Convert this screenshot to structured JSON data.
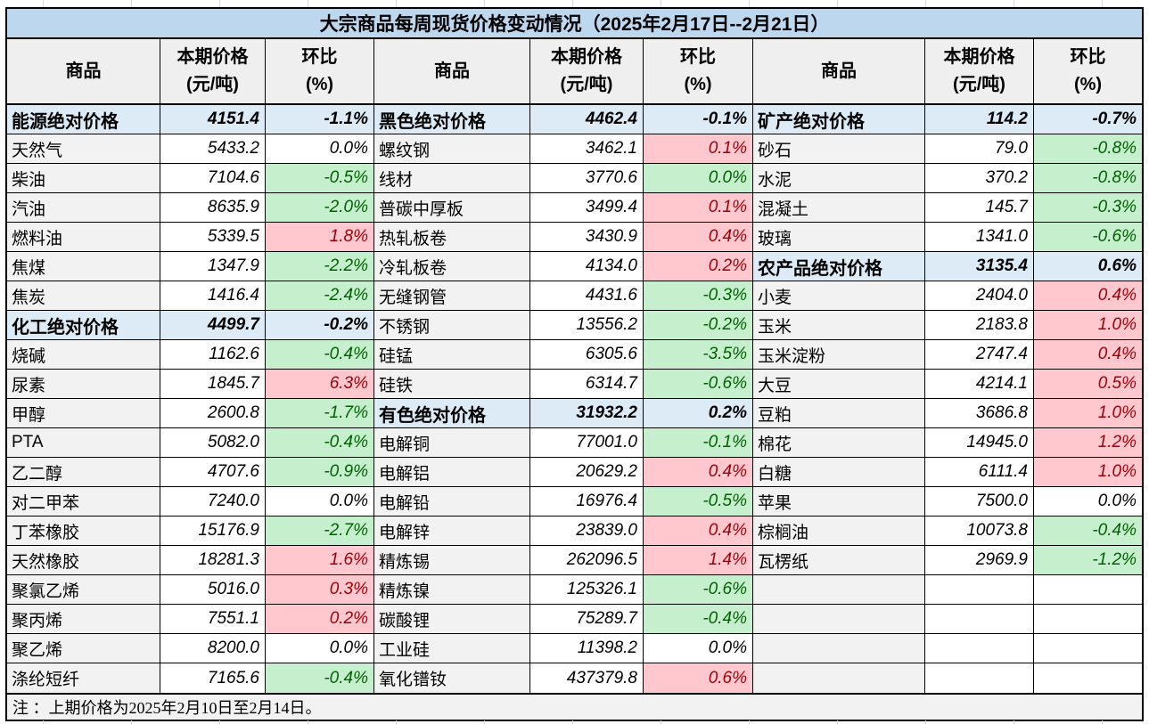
{
  "title": "大宗商品每周现货价格变动情况（2025年2月17日--2月21日）",
  "header": {
    "commodity": "商品",
    "price_line1": "本期价格",
    "price_line2": "(元/吨)",
    "pct_line1": "环比",
    "pct_line2": "(%)"
  },
  "note": "注 ：上期价格为2025年2月10日至2月14日。",
  "colors": {
    "title_bg": "#BDD7EE",
    "category_row_bg": "#DDEBF7",
    "header_bg": "#EFEFEF",
    "name_col_bg": "#F2F2F2",
    "increase_bg": "#FFC7CE",
    "increase_text": "#9C0006",
    "decrease_bg": "#C6EFCE",
    "decrease_text": "#006100",
    "border": "#000000"
  },
  "groups": [
    {
      "rows": [
        {
          "name": "能源绝对价格",
          "price": "4151.4",
          "pct": "-1.1%",
          "type": "category",
          "trend": null
        },
        {
          "name": "天然气",
          "price": "5433.2",
          "pct": "0.0%",
          "type": "item",
          "trend": "flat"
        },
        {
          "name": "柴油",
          "price": "7104.6",
          "pct": "-0.5%",
          "type": "item",
          "trend": "down"
        },
        {
          "name": "汽油",
          "price": "8635.9",
          "pct": "-2.0%",
          "type": "item",
          "trend": "down"
        },
        {
          "name": "燃料油",
          "price": "5339.5",
          "pct": "1.8%",
          "type": "item",
          "trend": "up"
        },
        {
          "name": "焦煤",
          "price": "1347.9",
          "pct": "-2.2%",
          "type": "item",
          "trend": "down"
        },
        {
          "name": "焦炭",
          "price": "1416.4",
          "pct": "-2.4%",
          "type": "item",
          "trend": "down"
        },
        {
          "name": "化工绝对价格",
          "price": "4499.7",
          "pct": "-0.2%",
          "type": "category",
          "trend": null
        },
        {
          "name": "烧碱",
          "price": "1162.6",
          "pct": "-0.4%",
          "type": "item",
          "trend": "down"
        },
        {
          "name": "尿素",
          "price": "1845.7",
          "pct": "6.3%",
          "type": "item",
          "trend": "up"
        },
        {
          "name": "甲醇",
          "price": "2600.8",
          "pct": "-1.7%",
          "type": "item",
          "trend": "down"
        },
        {
          "name": "PTA",
          "price": "5082.0",
          "pct": "-0.4%",
          "type": "item",
          "trend": "down"
        },
        {
          "name": "乙二醇",
          "price": "4707.6",
          "pct": "-0.9%",
          "type": "item",
          "trend": "down"
        },
        {
          "name": "对二甲苯",
          "price": "7240.0",
          "pct": "0.0%",
          "type": "item",
          "trend": "flat"
        },
        {
          "name": "丁苯橡胶",
          "price": "15176.9",
          "pct": "-2.7%",
          "type": "item",
          "trend": "down"
        },
        {
          "name": "天然橡胶",
          "price": "18281.3",
          "pct": "1.6%",
          "type": "item",
          "trend": "up"
        },
        {
          "name": "聚氯乙烯",
          "price": "5016.0",
          "pct": "0.3%",
          "type": "item",
          "trend": "up"
        },
        {
          "name": "聚丙烯",
          "price": "7551.1",
          "pct": "0.2%",
          "type": "item",
          "trend": "up"
        },
        {
          "name": "聚乙烯",
          "price": "8200.0",
          "pct": "0.0%",
          "type": "item",
          "trend": "flat"
        },
        {
          "name": "涤纶短纤",
          "price": "7165.6",
          "pct": "-0.4%",
          "type": "item",
          "trend": "down"
        }
      ]
    },
    {
      "rows": [
        {
          "name": "黑色绝对价格",
          "price": "4462.4",
          "pct": "-0.1%",
          "type": "category",
          "trend": null
        },
        {
          "name": "螺纹钢",
          "price": "3462.1",
          "pct": "0.1%",
          "type": "item",
          "trend": "up"
        },
        {
          "name": "线材",
          "price": "3770.6",
          "pct": "0.0%",
          "type": "item",
          "trend": "down"
        },
        {
          "name": "普碳中厚板",
          "price": "3499.4",
          "pct": "0.1%",
          "type": "item",
          "trend": "up"
        },
        {
          "name": "热轧板卷",
          "price": "3430.9",
          "pct": "0.4%",
          "type": "item",
          "trend": "up"
        },
        {
          "name": "冷轧板卷",
          "price": "4134.0",
          "pct": "0.2%",
          "type": "item",
          "trend": "up"
        },
        {
          "name": "无缝钢管",
          "price": "4431.6",
          "pct": "-0.3%",
          "type": "item",
          "trend": "down"
        },
        {
          "name": "不锈钢",
          "price": "13556.2",
          "pct": "-0.2%",
          "type": "item",
          "trend": "down"
        },
        {
          "name": "硅锰",
          "price": "6305.6",
          "pct": "-3.5%",
          "type": "item",
          "trend": "down"
        },
        {
          "name": "硅铁",
          "price": "6314.7",
          "pct": "-0.6%",
          "type": "item",
          "trend": "down"
        },
        {
          "name": "有色绝对价格",
          "price": "31932.2",
          "pct": "0.2%",
          "type": "category",
          "trend": null
        },
        {
          "name": "电解铜",
          "price": "77001.0",
          "pct": "-0.1%",
          "type": "item",
          "trend": "down"
        },
        {
          "name": "电解铝",
          "price": "20629.2",
          "pct": "0.4%",
          "type": "item",
          "trend": "up"
        },
        {
          "name": "电解铅",
          "price": "16976.4",
          "pct": "-0.5%",
          "type": "item",
          "trend": "down"
        },
        {
          "name": "电解锌",
          "price": "23839.0",
          "pct": "0.4%",
          "type": "item",
          "trend": "up"
        },
        {
          "name": "精炼锡",
          "price": "262096.5",
          "pct": "1.4%",
          "type": "item",
          "trend": "up"
        },
        {
          "name": "精炼镍",
          "price": "125326.1",
          "pct": "-0.6%",
          "type": "item",
          "trend": "down"
        },
        {
          "name": "碳酸锂",
          "price": "75289.7",
          "pct": "-0.4%",
          "type": "item",
          "trend": "down"
        },
        {
          "name": "工业硅",
          "price": "11398.2",
          "pct": "0.0%",
          "type": "item",
          "trend": "flat"
        },
        {
          "name": "氧化镨钕",
          "price": "437379.8",
          "pct": "0.6%",
          "type": "item",
          "trend": "up"
        }
      ]
    },
    {
      "rows": [
        {
          "name": "矿产绝对价格",
          "price": "114.2",
          "pct": "-0.7%",
          "type": "category",
          "trend": null
        },
        {
          "name": "砂石",
          "price": "79.0",
          "pct": "-0.8%",
          "type": "item",
          "trend": "down"
        },
        {
          "name": "水泥",
          "price": "370.2",
          "pct": "-0.8%",
          "type": "item",
          "trend": "down"
        },
        {
          "name": "混凝土",
          "price": "145.7",
          "pct": "-0.3%",
          "type": "item",
          "trend": "down"
        },
        {
          "name": "玻璃",
          "price": "1341.0",
          "pct": "-0.6%",
          "type": "item",
          "trend": "down"
        },
        {
          "name": "农产品绝对价格",
          "price": "3135.4",
          "pct": "0.6%",
          "type": "category",
          "trend": null
        },
        {
          "name": "小麦",
          "price": "2404.0",
          "pct": "0.4%",
          "type": "item",
          "trend": "up"
        },
        {
          "name": "玉米",
          "price": "2183.8",
          "pct": "1.0%",
          "type": "item",
          "trend": "up"
        },
        {
          "name": "玉米淀粉",
          "price": "2747.4",
          "pct": "0.4%",
          "type": "item",
          "trend": "up"
        },
        {
          "name": "大豆",
          "price": "4214.1",
          "pct": "0.5%",
          "type": "item",
          "trend": "up"
        },
        {
          "name": "豆粕",
          "price": "3686.8",
          "pct": "1.0%",
          "type": "item",
          "trend": "up"
        },
        {
          "name": "棉花",
          "price": "14945.0",
          "pct": "1.2%",
          "type": "item",
          "trend": "up"
        },
        {
          "name": "白糖",
          "price": "6111.4",
          "pct": "1.0%",
          "type": "item",
          "trend": "up"
        },
        {
          "name": "苹果",
          "price": "7500.0",
          "pct": "0.0%",
          "type": "item",
          "trend": "flat"
        },
        {
          "name": "棕榈油",
          "price": "10073.8",
          "pct": "-0.4%",
          "type": "item",
          "trend": "down"
        },
        {
          "name": "瓦楞纸",
          "price": "2969.9",
          "pct": "-1.2%",
          "type": "item",
          "trend": "down"
        },
        {
          "name": "",
          "price": "",
          "pct": "",
          "type": "empty",
          "trend": null
        },
        {
          "name": "",
          "price": "",
          "pct": "",
          "type": "empty",
          "trend": null
        },
        {
          "name": "",
          "price": "",
          "pct": "",
          "type": "empty",
          "trend": null
        },
        {
          "name": "",
          "price": "",
          "pct": "",
          "type": "empty",
          "trend": null
        }
      ]
    }
  ]
}
